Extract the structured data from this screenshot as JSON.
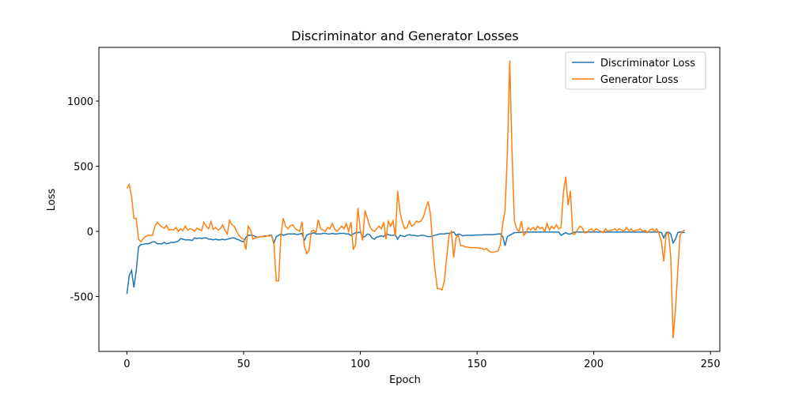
{
  "chart_data": {
    "type": "line",
    "title": "Discriminator and Generator Losses",
    "x_label": "Epoch",
    "y_label": "Loss",
    "x": [
      0,
      1,
      2,
      3,
      4,
      5,
      6,
      7,
      8,
      9,
      10,
      11,
      12,
      13,
      14,
      15,
      16,
      17,
      18,
      19,
      20,
      21,
      22,
      23,
      24,
      25,
      26,
      27,
      28,
      29,
      30,
      31,
      32,
      33,
      34,
      35,
      36,
      37,
      38,
      39,
      40,
      41,
      42,
      43,
      44,
      45,
      46,
      47,
      48,
      49,
      50,
      51,
      52,
      53,
      54,
      55,
      56,
      57,
      58,
      59,
      60,
      61,
      62,
      63,
      64,
      65,
      66,
      67,
      68,
      69,
      70,
      71,
      72,
      73,
      74,
      75,
      76,
      77,
      78,
      79,
      80,
      81,
      82,
      83,
      84,
      85,
      86,
      87,
      88,
      89,
      90,
      91,
      92,
      93,
      94,
      95,
      96,
      97,
      98,
      99,
      100,
      101,
      102,
      103,
      104,
      105,
      106,
      107,
      108,
      109,
      110,
      111,
      112,
      113,
      114,
      115,
      116,
      117,
      118,
      119,
      120,
      121,
      122,
      123,
      124,
      125,
      126,
      127,
      128,
      129,
      130,
      131,
      132,
      133,
      134,
      135,
      136,
      137,
      138,
      139,
      140,
      141,
      142,
      143,
      144,
      145,
      146,
      147,
      148,
      149,
      150,
      151,
      152,
      153,
      154,
      155,
      156,
      157,
      158,
      159,
      160,
      161,
      162,
      163,
      164,
      165,
      166,
      167,
      168,
      169,
      170,
      171,
      172,
      173,
      174,
      175,
      176,
      177,
      178,
      179,
      180,
      181,
      182,
      183,
      184,
      185,
      186,
      187,
      188,
      189,
      190,
      191,
      192,
      193,
      194,
      195,
      196,
      197,
      198,
      199,
      200,
      201,
      202,
      203,
      204,
      205,
      206,
      207,
      208,
      209,
      210,
      211,
      212,
      213,
      214,
      215,
      216,
      217,
      218,
      219,
      220,
      221,
      222,
      223,
      224,
      225,
      226,
      227,
      228,
      229,
      230,
      231,
      232,
      233,
      234,
      235,
      236,
      237,
      238,
      239
    ],
    "series": [
      {
        "name": "Discriminator Loss",
        "color": "#1f77b4",
        "values": [
          -480,
          -340,
          -300,
          -430,
          -300,
          -120,
          -100,
          -100,
          -95,
          -95,
          -90,
          -80,
          -80,
          -95,
          -95,
          -95,
          -85,
          -95,
          -90,
          -85,
          -85,
          -80,
          -75,
          -55,
          -60,
          -65,
          -65,
          -65,
          -70,
          -50,
          -55,
          -50,
          -55,
          -50,
          -50,
          -60,
          -60,
          -65,
          -60,
          -65,
          -65,
          -60,
          -65,
          -60,
          -55,
          -50,
          -50,
          -60,
          -65,
          -75,
          -80,
          -45,
          -30,
          -30,
          -30,
          -40,
          -45,
          -40,
          -40,
          -35,
          -35,
          -30,
          -30,
          -90,
          -40,
          -30,
          -20,
          -30,
          -25,
          -20,
          -20,
          -20,
          -20,
          -25,
          -20,
          -15,
          -70,
          -30,
          -20,
          -20,
          -10,
          -20,
          -20,
          -20,
          -15,
          -15,
          -20,
          -20,
          -15,
          -20,
          -20,
          -15,
          -15,
          -15,
          -20,
          -20,
          -30,
          -20,
          -10,
          -10,
          -5,
          -45,
          -40,
          -20,
          -25,
          -50,
          -60,
          -45,
          -40,
          -35,
          -40,
          -20,
          -25,
          -30,
          -30,
          -25,
          -60,
          -30,
          -35,
          -40,
          -30,
          -25,
          -30,
          -30,
          -35,
          -35,
          -30,
          -30,
          -35,
          -40,
          -40,
          -35,
          -30,
          -25,
          -20,
          -20,
          -20,
          -15,
          -15,
          -10,
          -5,
          -30,
          -20,
          -25,
          -35,
          -30,
          -30,
          -30,
          -30,
          -28,
          -28,
          -27,
          -27,
          -26,
          -25,
          -25,
          -25,
          -25,
          -22,
          -20,
          -20,
          -40,
          -110,
          -40,
          -30,
          -20,
          -10,
          -8,
          -8,
          -6,
          -6,
          -5,
          -5,
          -5,
          -5,
          -5,
          -5,
          -5,
          -5,
          -5,
          -5,
          -5,
          -5,
          -5,
          -5,
          -5,
          -30,
          -20,
          -10,
          -20,
          -20,
          -10,
          -5,
          -5,
          -5,
          -5,
          -5,
          -5,
          -5,
          -5,
          -5,
          -5,
          -5,
          -5,
          -5,
          -5,
          -5,
          -5,
          -5,
          -5,
          -5,
          -5,
          -5,
          -5,
          -5,
          -5,
          -5,
          -5,
          -5,
          -5,
          -5,
          -5,
          -5,
          -5,
          -5,
          -5,
          -5,
          -5,
          -5,
          -10,
          -50,
          -10,
          -5,
          -20,
          -90,
          -60,
          -10,
          -5,
          -5,
          -10
        ]
      },
      {
        "name": "Generator Loss",
        "color": "#ff7f0e",
        "values": [
          330,
          360,
          270,
          100,
          100,
          -60,
          -80,
          -55,
          -40,
          -30,
          -30,
          -30,
          40,
          70,
          50,
          35,
          25,
          45,
          10,
          15,
          10,
          30,
          0,
          20,
          5,
          40,
          10,
          20,
          15,
          0,
          25,
          15,
          5,
          70,
          40,
          20,
          75,
          15,
          30,
          10,
          20,
          50,
          10,
          -20,
          85,
          50,
          40,
          0,
          -30,
          -50,
          -60,
          -140,
          40,
          10,
          -60,
          -50,
          -45,
          -40,
          -40,
          -40,
          -35,
          -35,
          -35,
          -100,
          -380,
          -380,
          -30,
          100,
          40,
          20,
          45,
          50,
          25,
          10,
          0,
          75,
          -110,
          -170,
          -150,
          0,
          10,
          -10,
          90,
          20,
          10,
          0,
          30,
          20,
          60,
          20,
          0,
          20,
          40,
          20,
          60,
          0,
          70,
          -140,
          -100,
          180,
          10,
          -70,
          160,
          100,
          40,
          10,
          0,
          20,
          40,
          20,
          70,
          -60,
          80,
          40,
          80,
          -40,
          310,
          150,
          70,
          20,
          30,
          80,
          40,
          50,
          80,
          70,
          80,
          110,
          170,
          230,
          140,
          -100,
          -300,
          -440,
          -440,
          -450,
          -380,
          -200,
          -30,
          0,
          -200,
          -50,
          -30,
          -110,
          -110,
          -120,
          -120,
          -125,
          -125,
          -125,
          -125,
          -130,
          -130,
          -140,
          -130,
          -150,
          -160,
          -160,
          -155,
          -150,
          -100,
          60,
          160,
          600,
          1310,
          600,
          80,
          20,
          0,
          80,
          -30,
          -10,
          30,
          10,
          30,
          10,
          40,
          20,
          30,
          0,
          60,
          10,
          40,
          20,
          50,
          20,
          30,
          300,
          420,
          200,
          310,
          -20,
          -20,
          10,
          40,
          30,
          -10,
          -10,
          10,
          20,
          0,
          20,
          10,
          0,
          -10,
          20,
          0,
          10,
          10,
          20,
          5,
          20,
          10,
          0,
          30,
          5,
          20,
          0,
          10,
          10,
          20,
          0,
          10,
          -10,
          10,
          20,
          0,
          20,
          -20,
          -80,
          -230,
          -20,
          -10,
          -200,
          -820,
          -600,
          -300,
          -30,
          0,
          10
        ]
      }
    ],
    "xlim": [
      -12,
      254
    ],
    "ylim": [
      -921,
      1412
    ],
    "xticks": [
      0,
      50,
      100,
      150,
      200,
      250
    ],
    "yticks": [
      -500,
      0,
      500,
      1000
    ],
    "yticks_labels_note_free": null,
    "legend": "upper right"
  }
}
